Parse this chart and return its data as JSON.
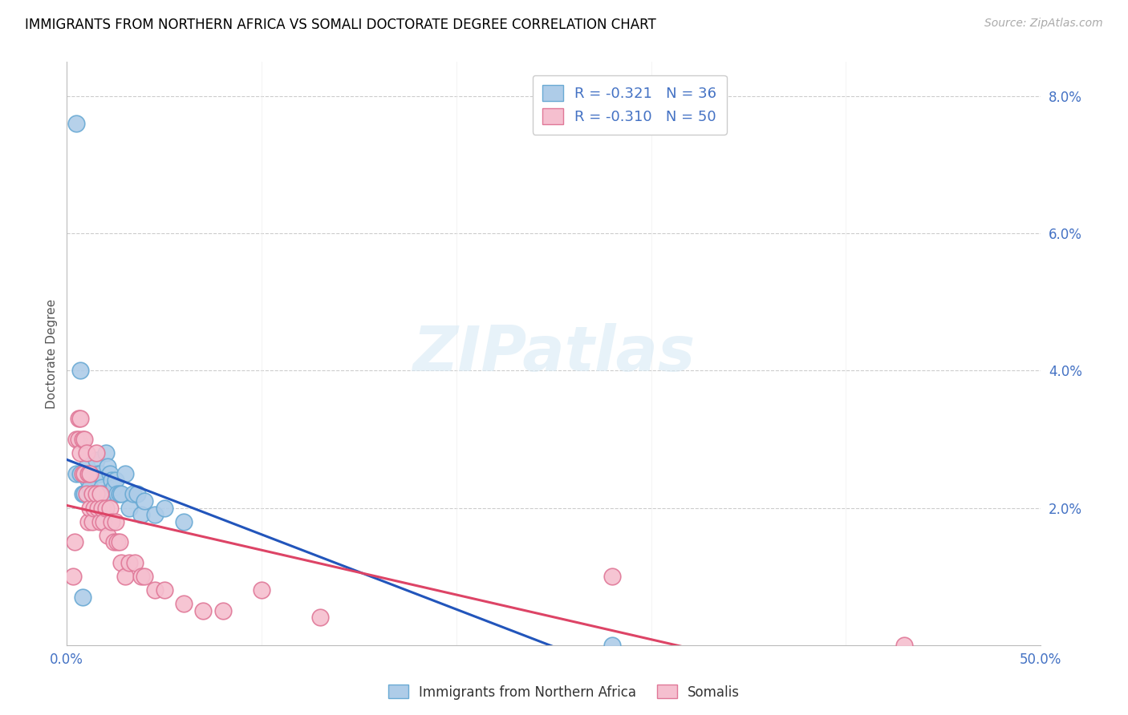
{
  "title": "IMMIGRANTS FROM NORTHERN AFRICA VS SOMALI DOCTORATE DEGREE CORRELATION CHART",
  "source": "Source: ZipAtlas.com",
  "ylabel": "Doctorate Degree",
  "xlim": [
    0.0,
    0.5
  ],
  "ylim": [
    0.0,
    0.085
  ],
  "xticks": [
    0.0,
    0.1,
    0.2,
    0.3,
    0.4,
    0.5
  ],
  "yticks": [
    0.0,
    0.02,
    0.04,
    0.06,
    0.08
  ],
  "xticklabels": [
    "0.0%",
    "",
    "",
    "",
    "",
    "50.0%"
  ],
  "yticklabels": [
    "",
    "2.0%",
    "4.0%",
    "6.0%",
    "8.0%"
  ],
  "blue_color": "#aecce8",
  "blue_edge": "#6aaad4",
  "pink_color": "#f5bfcf",
  "pink_edge": "#e07898",
  "trend_blue": "#2255bb",
  "trend_pink": "#dd4466",
  "legend_blue_label": "R = -0.321   N = 36",
  "legend_pink_label": "R = -0.310   N = 50",
  "legend_blue_face": "#aecce8",
  "legend_pink_face": "#f5bfcf",
  "bottom_legend_blue": "Immigrants from Northern Africa",
  "bottom_legend_pink": "Somalis",
  "watermark": "ZIPatlas",
  "blue_x": [
    0.005,
    0.005,
    0.007,
    0.008,
    0.009,
    0.01,
    0.011,
    0.012,
    0.013,
    0.014,
    0.015,
    0.016,
    0.017,
    0.018,
    0.019,
    0.02,
    0.021,
    0.022,
    0.023,
    0.024,
    0.025,
    0.026,
    0.027,
    0.028,
    0.03,
    0.032,
    0.034,
    0.036,
    0.038,
    0.04,
    0.045,
    0.05,
    0.06,
    0.28,
    0.007,
    0.008
  ],
  "blue_y": [
    0.076,
    0.025,
    0.025,
    0.022,
    0.022,
    0.026,
    0.024,
    0.023,
    0.022,
    0.022,
    0.027,
    0.025,
    0.025,
    0.023,
    0.022,
    0.028,
    0.026,
    0.025,
    0.024,
    0.023,
    0.024,
    0.022,
    0.022,
    0.022,
    0.025,
    0.02,
    0.022,
    0.022,
    0.019,
    0.021,
    0.019,
    0.02,
    0.018,
    0.0,
    0.04,
    0.007
  ],
  "pink_x": [
    0.003,
    0.004,
    0.005,
    0.006,
    0.006,
    0.007,
    0.007,
    0.008,
    0.008,
    0.009,
    0.009,
    0.01,
    0.01,
    0.011,
    0.011,
    0.012,
    0.012,
    0.013,
    0.013,
    0.014,
    0.015,
    0.015,
    0.016,
    0.017,
    0.017,
    0.018,
    0.019,
    0.02,
    0.021,
    0.022,
    0.023,
    0.024,
    0.025,
    0.026,
    0.027,
    0.028,
    0.03,
    0.032,
    0.035,
    0.038,
    0.04,
    0.045,
    0.05,
    0.06,
    0.07,
    0.08,
    0.1,
    0.13,
    0.28,
    0.43
  ],
  "pink_y": [
    0.01,
    0.015,
    0.03,
    0.03,
    0.033,
    0.033,
    0.028,
    0.03,
    0.025,
    0.03,
    0.025,
    0.028,
    0.022,
    0.025,
    0.018,
    0.025,
    0.02,
    0.022,
    0.018,
    0.02,
    0.028,
    0.022,
    0.02,
    0.022,
    0.018,
    0.02,
    0.018,
    0.02,
    0.016,
    0.02,
    0.018,
    0.015,
    0.018,
    0.015,
    0.015,
    0.012,
    0.01,
    0.012,
    0.012,
    0.01,
    0.01,
    0.008,
    0.008,
    0.006,
    0.005,
    0.005,
    0.008,
    0.004,
    0.01,
    0.0
  ]
}
